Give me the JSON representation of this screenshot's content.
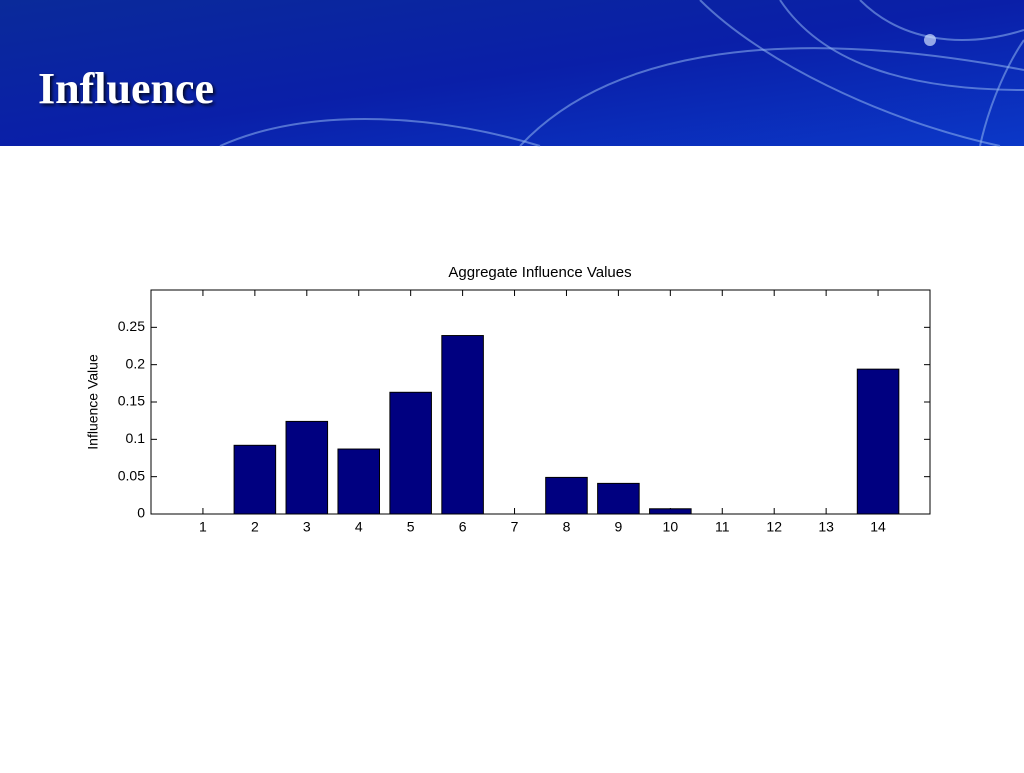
{
  "slide": {
    "title": "Influence"
  },
  "chart_data": {
    "type": "bar",
    "title": "Aggregate Influence Values",
    "y_label": "Influence Value",
    "x": [
      1,
      2,
      3,
      4,
      5,
      6,
      7,
      8,
      9,
      10,
      11,
      12,
      13,
      14
    ],
    "values": [
      0,
      0.092,
      0.124,
      0.087,
      0.163,
      0.239,
      0,
      0.049,
      0.041,
      0.007,
      0,
      0,
      0,
      0.194
    ],
    "color": "#000080",
    "xlim": [
      0,
      15
    ],
    "xticks": [
      1,
      2,
      3,
      4,
      5,
      6,
      7,
      8,
      9,
      10,
      11,
      12,
      13,
      14
    ],
    "ylim": [
      0,
      0.3
    ],
    "yticks": [
      0,
      0.05,
      0.1,
      0.15,
      0.2,
      0.25
    ],
    "grid": false
  }
}
